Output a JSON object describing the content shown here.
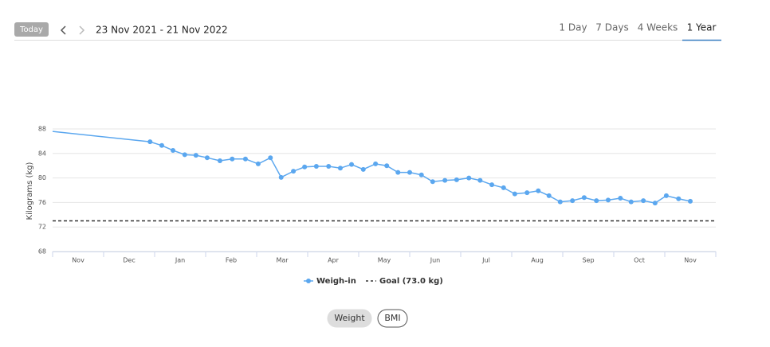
{
  "header": {
    "today": "Today",
    "range": "23 Nov 2021 - 21 Nov 2022",
    "tabs": [
      "1 Day",
      "7 Days",
      "4 Weeks",
      "1 Year"
    ],
    "active_tab": 3
  },
  "chart_data": {
    "type": "line",
    "ylabel": "Kilograms (kg)",
    "categories": [
      "Nov",
      "Dec",
      "Jan",
      "Feb",
      "Mar",
      "Apr",
      "May",
      "Jun",
      "Jul",
      "Aug",
      "Sep",
      "Oct",
      "Nov"
    ],
    "xlim": [
      0,
      13
    ],
    "ylim": [
      68,
      88
    ],
    "yticks": [
      68,
      72,
      76,
      80,
      84,
      88
    ],
    "grid": true,
    "series": [
      {
        "name": "Weigh-in",
        "color": "#5ba7ef",
        "x": [
          0,
          1.91,
          2.14,
          2.36,
          2.59,
          2.81,
          3.03,
          3.28,
          3.52,
          3.78,
          4.03,
          4.27,
          4.48,
          4.72,
          4.94,
          5.17,
          5.41,
          5.64,
          5.86,
          6.09,
          6.33,
          6.55,
          6.77,
          7.0,
          7.23,
          7.45,
          7.69,
          7.92,
          8.16,
          8.38,
          8.61,
          8.84,
          9.06,
          9.3,
          9.52,
          9.73,
          9.95,
          10.19,
          10.42,
          10.66,
          10.89,
          11.13,
          11.34,
          11.58,
          11.81,
          12.03,
          12.27,
          12.5
        ],
        "values": [
          87.6,
          85.9,
          85.3,
          84.5,
          83.8,
          83.7,
          83.3,
          82.8,
          83.1,
          83.1,
          82.3,
          83.3,
          80.1,
          81.1,
          81.8,
          81.9,
          81.9,
          81.6,
          82.2,
          81.4,
          82.3,
          82.0,
          80.9,
          80.9,
          80.5,
          79.4,
          79.6,
          79.7,
          80.0,
          79.6,
          78.9,
          78.4,
          77.4,
          77.6,
          77.9,
          77.1,
          76.1,
          76.3,
          76.8,
          76.3,
          76.4,
          76.7,
          76.1,
          76.3,
          75.9,
          77.1,
          76.6,
          76.2
        ]
      }
    ],
    "goal": {
      "name": "Goal (73.0 kg)",
      "value": 73,
      "color": "#333"
    }
  },
  "buttons": [
    "Weight",
    "BMI"
  ],
  "active_button": 0
}
